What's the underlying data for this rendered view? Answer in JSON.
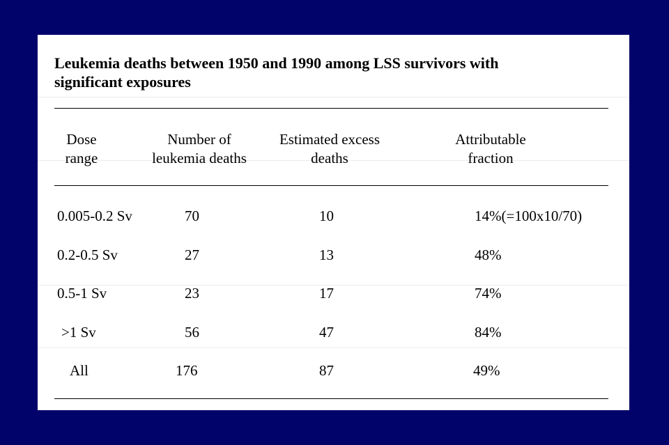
{
  "title_line1": "Leukemia deaths between 1950 and 1990 among LSS survivors with",
  "title_line2": "significant exposures",
  "headers": {
    "dose": [
      "Dose",
      "range"
    ],
    "deaths": [
      "Number of",
      "leukemia deaths"
    ],
    "excess": [
      "Estimated excess",
      "deaths"
    ],
    "fraction": [
      "Attributable",
      "fraction"
    ]
  },
  "rows": [
    {
      "dose": "0.005-0.2 Sv",
      "deaths": "70",
      "excess": "10",
      "fraction": "14%(=100x10/70)"
    },
    {
      "dose": "0.2-0.5 Sv",
      "deaths": "27",
      "excess": "13",
      "fraction": "48%"
    },
    {
      "dose": "0.5-1 Sv",
      "deaths": "23",
      "excess": "17",
      "fraction": "74%"
    },
    {
      "dose": ">1 Sv",
      "deaths": "56",
      "excess": "47",
      "fraction": "84%"
    },
    {
      "dose": "All",
      "deaths": "176",
      "excess": "87",
      "fraction": "49%"
    }
  ],
  "colors": {
    "frame": "#02026b",
    "panel": "#ffffff",
    "text": "#000000"
  }
}
